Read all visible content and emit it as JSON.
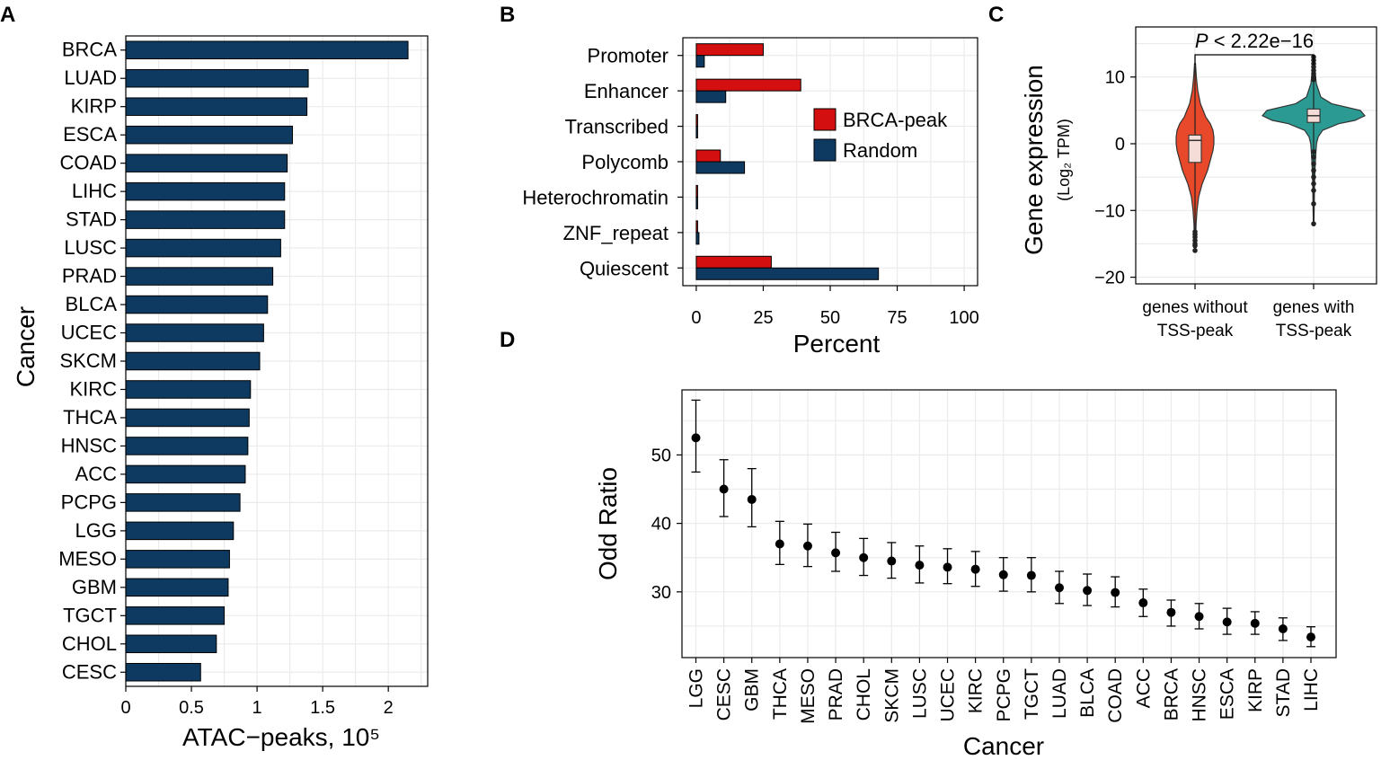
{
  "panels": {
    "a": "A",
    "b": "B",
    "c": "C",
    "d": "D"
  },
  "chart_data": [
    {
      "id": "A",
      "type": "bar",
      "orientation": "horizontal",
      "categories": [
        "BRCA",
        "LUAD",
        "KIRP",
        "ESCA",
        "COAD",
        "LIHC",
        "STAD",
        "LUSC",
        "PRAD",
        "BLCA",
        "UCEC",
        "SKCM",
        "KIRC",
        "THCA",
        "HNSC",
        "ACC",
        "PCPG",
        "LGG",
        "MESO",
        "GBM",
        "TGCT",
        "CHOL",
        "CESC"
      ],
      "values": [
        2.15,
        1.39,
        1.38,
        1.27,
        1.23,
        1.21,
        1.21,
        1.18,
        1.12,
        1.08,
        1.05,
        1.02,
        0.95,
        0.94,
        0.93,
        0.91,
        0.87,
        0.82,
        0.79,
        0.78,
        0.75,
        0.69,
        0.57
      ],
      "xticks": [
        "0",
        "0.5",
        "1",
        "1.5",
        "2"
      ],
      "xlabel": "ATAC−peaks, 10⁵",
      "ylabel": "Cancer",
      "xlim": [
        0,
        2.3
      ],
      "bar_color": "#0e3a62"
    },
    {
      "id": "B",
      "type": "bar",
      "orientation": "horizontal",
      "categories": [
        "Promoter",
        "Enhancer",
        "Transcribed",
        "Polycomb",
        "Heterochromatin",
        "ZNF_repeat",
        "Quiescent"
      ],
      "series": [
        {
          "name": "BRCA-peak",
          "color": "#d40f0f",
          "values": [
            25,
            39,
            0.3,
            9,
            0.3,
            0.5,
            28
          ]
        },
        {
          "name": "Random",
          "color": "#0e3a62",
          "values": [
            3,
            11,
            0.3,
            18,
            0.3,
            1,
            68
          ]
        }
      ],
      "xticks": [
        "0",
        "25",
        "50",
        "75",
        "100"
      ],
      "xlabel": "Percent",
      "xlim": [
        -5,
        105
      ]
    },
    {
      "id": "C",
      "type": "violin",
      "groups": [
        {
          "label_line1": "genes without",
          "label_line2": "TSS-peak",
          "color": "#e8492a",
          "median": 0.5,
          "q1": -2.8,
          "q3": 1.3,
          "min": -16,
          "max": 12
        },
        {
          "label_line1": "genes with",
          "label_line2": "TSS-peak",
          "color": "#2a9a92",
          "median": 4.2,
          "q1": 3.2,
          "q3": 5.2,
          "min": -12,
          "max": 13
        }
      ],
      "ylabel": "Gene expression",
      "ylabel_sub": "(Log₂ TPM)",
      "yticks": [
        "10",
        "0",
        "−10",
        "−20"
      ],
      "ylim": [
        -21,
        17.5
      ],
      "annotation_p": "P",
      "annotation_rest": " < 2.22e−16"
    },
    {
      "id": "D",
      "type": "scatter",
      "subtype": "errorbar",
      "categories": [
        "LGG",
        "CESC",
        "GBM",
        "THCA",
        "MESO",
        "PRAD",
        "CHOL",
        "SKCM",
        "LUSC",
        "UCEC",
        "KIRC",
        "PCPG",
        "TGCT",
        "LUAD",
        "BLCA",
        "COAD",
        "ACC",
        "BRCA",
        "HNSC",
        "ESCA",
        "KIRP",
        "STAD",
        "LIHC"
      ],
      "values": [
        52.5,
        45,
        43.5,
        37,
        36.7,
        35.7,
        35,
        34.5,
        33.9,
        33.6,
        33.3,
        32.5,
        32.4,
        30.6,
        30.2,
        29.9,
        28.4,
        27,
        26.4,
        25.6,
        25.4,
        24.6,
        23.4
      ],
      "lower": [
        47.5,
        41,
        39.5,
        34,
        33.7,
        33,
        32.4,
        32,
        31.3,
        31.2,
        30.8,
        30.1,
        30,
        28.3,
        28,
        27.8,
        26.4,
        25,
        24.6,
        23.8,
        23.8,
        22.9,
        22
      ],
      "upper": [
        58,
        49.3,
        48,
        40.3,
        39.9,
        38.7,
        37.8,
        37.2,
        36.7,
        36.3,
        35.9,
        35,
        35,
        33,
        32.6,
        32.2,
        30.4,
        28.8,
        28.3,
        27.6,
        27.1,
        26.2,
        24.9
      ],
      "yticks": [
        "50",
        "40",
        "30"
      ],
      "ylabel": "Odd Ratio",
      "xlabel": "Cancer",
      "ylim": [
        20.4,
        59.5
      ]
    }
  ]
}
